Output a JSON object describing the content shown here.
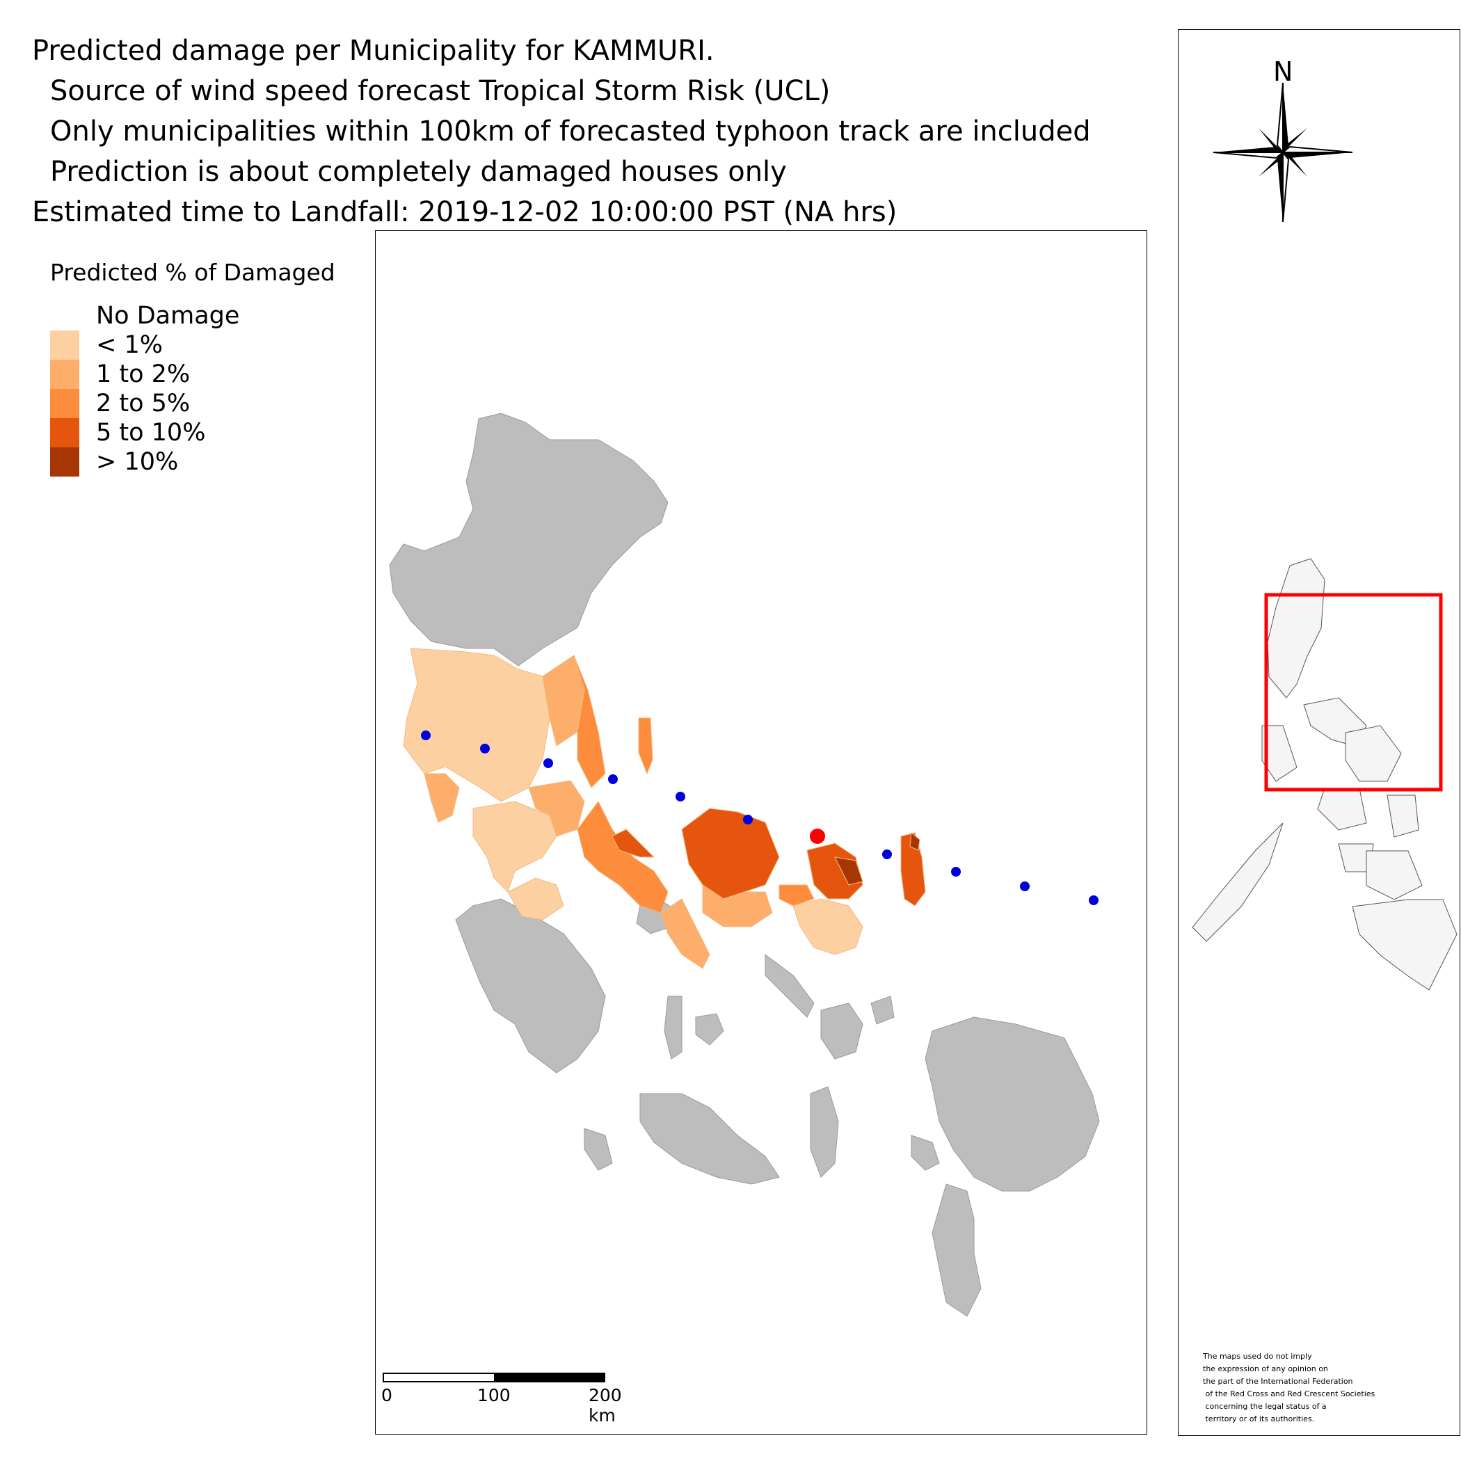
{
  "title": {
    "line1": "Predicted damage per Municipality for KAMMURI.",
    "line2": "Source of wind speed forecast Tropical Storm Risk (UCL)",
    "line3": "Only municipalities within 100km of forecasted typhoon track are included",
    "line4": "Prediction is about completely damaged houses only",
    "line5": "Estimated time to Landfall: 2019-12-02 10:00:00 PST (NA hrs)"
  },
  "legend": {
    "title": "Predicted % of Damaged",
    "items": [
      {
        "label": "No Damage",
        "color": "#ffffff"
      },
      {
        "label": "< 1%",
        "color": "#fdd0a2"
      },
      {
        "label": "1 to 2%",
        "color": "#fdae6b"
      },
      {
        "label": "2 to 5%",
        "color": "#fd8d3c"
      },
      {
        "label": "5 to 10%",
        "color": "#e6550d"
      },
      {
        "label": "> 10%",
        "color": "#a63603"
      }
    ]
  },
  "map": {
    "unaffected_color": "#bdbdbd",
    "track_point_color": "#0000dd",
    "landfall_point_color": "#ff0000",
    "scalebar": {
      "ticks": [
        "0",
        "100",
        "200 km"
      ]
    }
  },
  "inset": {
    "north_label": "N",
    "highlight_color": "#ff0000",
    "disclaimer": "The maps used do not imply\nthe expression of any opinion on\nthe part of the International Federation\n of the Red Cross and Red Crescent Societies\n concerning the legal status of a\n territory or of its authorities."
  }
}
